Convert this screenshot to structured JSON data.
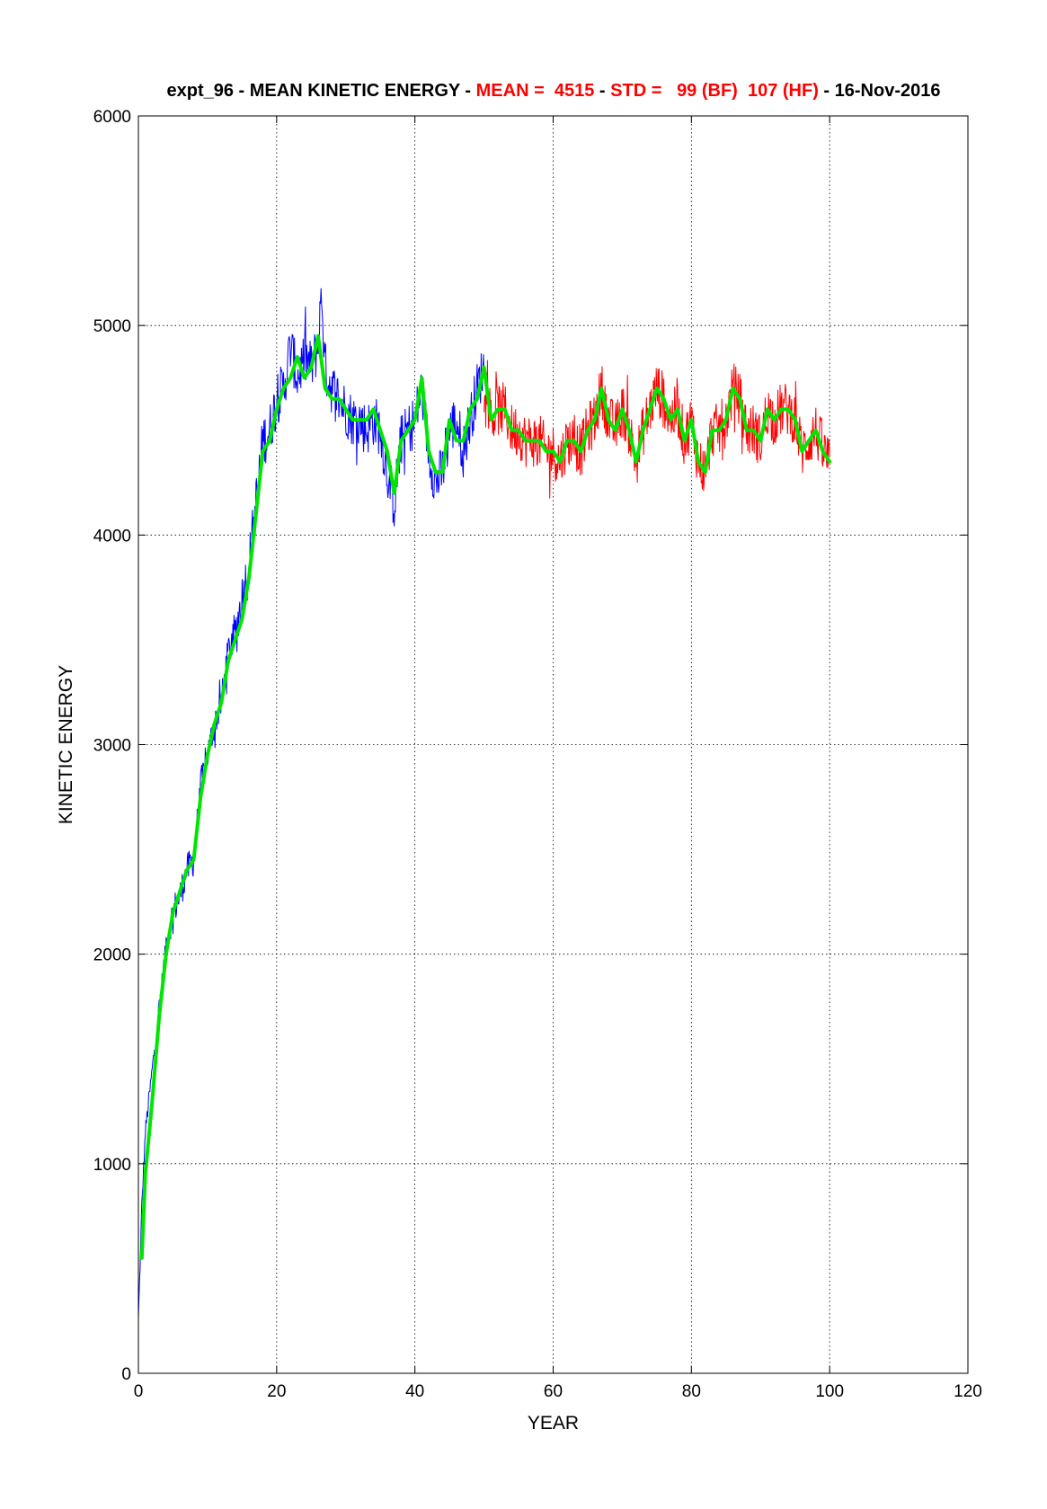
{
  "chart_data": {
    "type": "line",
    "title_parts": [
      {
        "text": "expt_96 - MEAN KINETIC ENERGY - ",
        "color": "#000000"
      },
      {
        "text": "MEAN =  4515",
        "color": "#ff0000"
      },
      {
        "text": " - ",
        "color": "#000000"
      },
      {
        "text": "STD =   99 (BF)  107 (HF)",
        "color": "#ff0000"
      },
      {
        "text": " - 16-Nov-2016",
        "color": "#000000"
      }
    ],
    "xlabel": "YEAR",
    "ylabel": "KINETIC ENERGY",
    "xlim": [
      0,
      120
    ],
    "ylim": [
      0,
      6000
    ],
    "xticks": [
      0,
      20,
      40,
      60,
      80,
      100,
      120
    ],
    "yticks": [
      0,
      1000,
      2000,
      3000,
      4000,
      5000,
      6000
    ],
    "grid": true,
    "series": [
      {
        "color": "#0000ff",
        "style": "thin-noisy",
        "x": [
          0,
          0.5,
          1,
          2,
          3,
          4,
          5,
          6,
          7,
          8,
          9,
          10,
          11,
          12,
          13,
          14,
          15,
          16,
          17,
          18,
          19,
          20,
          21,
          22,
          23,
          24,
          25,
          26,
          26.5,
          27,
          28,
          29,
          30,
          31,
          32,
          33,
          34,
          35,
          36,
          37,
          38,
          39,
          40,
          41,
          42,
          43,
          44,
          45,
          46,
          47,
          48,
          49,
          50
        ],
        "y": [
          250,
          800,
          1150,
          1450,
          1750,
          2050,
          2200,
          2280,
          2400,
          2450,
          2800,
          2950,
          3100,
          3200,
          3450,
          3520,
          3700,
          3850,
          4150,
          4450,
          4500,
          4650,
          4700,
          4900,
          4750,
          4850,
          4800,
          4900,
          5150,
          4800,
          4700,
          4650,
          4600,
          4550,
          4550,
          4500,
          4550,
          4500,
          4300,
          4150,
          4450,
          4500,
          4550,
          4700,
          4400,
          4250,
          4300,
          4500,
          4550,
          4400,
          4550,
          4700,
          4800
        ]
      },
      {
        "color": "#ff0000",
        "style": "thin-noisy",
        "x": [
          50,
          51,
          52,
          53,
          54,
          55,
          56,
          57,
          58,
          59,
          60,
          61,
          62,
          63,
          64,
          65,
          66,
          67,
          68,
          69,
          70,
          71,
          72,
          73,
          74,
          75,
          76,
          77,
          78,
          79,
          80,
          81,
          82,
          83,
          84,
          85,
          86,
          87,
          88,
          89,
          90,
          91,
          92,
          93,
          94,
          95,
          96,
          97,
          98,
          99,
          100
        ],
        "y": [
          4800,
          4550,
          4600,
          4600,
          4500,
          4500,
          4450,
          4450,
          4450,
          4400,
          4400,
          4350,
          4450,
          4450,
          4400,
          4500,
          4550,
          4700,
          4550,
          4500,
          4600,
          4500,
          4350,
          4500,
          4600,
          4700,
          4650,
          4550,
          4600,
          4450,
          4550,
          4350,
          4300,
          4500,
          4500,
          4550,
          4700,
          4650,
          4500,
          4500,
          4450,
          4600,
          4550,
          4600,
          4600,
          4550,
          4400,
          4450,
          4500,
          4400,
          4350
        ]
      },
      {
        "color": "#00e600",
        "style": "thick-smooth",
        "x": [
          0.5,
          1,
          2,
          3,
          4,
          5,
          6,
          7,
          8,
          9,
          10,
          11,
          12,
          13,
          14,
          15,
          16,
          17,
          18,
          19,
          20,
          21,
          22,
          23,
          24,
          25,
          26,
          27,
          28,
          29,
          30,
          31,
          32,
          33,
          34,
          35,
          36,
          37,
          38,
          39,
          40,
          41,
          42,
          43,
          44,
          45,
          46,
          47,
          48,
          49,
          50,
          51,
          52,
          53,
          54,
          55,
          56,
          57,
          58,
          59,
          60,
          61,
          62,
          63,
          64,
          65,
          66,
          67,
          68,
          69,
          70,
          71,
          72,
          73,
          74,
          75,
          76,
          77,
          78,
          79,
          80,
          81,
          82,
          83,
          84,
          85,
          86,
          87,
          88,
          89,
          90,
          91,
          92,
          93,
          94,
          95,
          96,
          97,
          98,
          99,
          100
        ],
        "y": [
          550,
          950,
          1300,
          1700,
          2000,
          2200,
          2300,
          2400,
          2450,
          2750,
          2950,
          3100,
          3200,
          3400,
          3500,
          3600,
          3800,
          4100,
          4400,
          4450,
          4600,
          4700,
          4750,
          4850,
          4750,
          4800,
          4950,
          4700,
          4650,
          4650,
          4600,
          4550,
          4550,
          4550,
          4600,
          4500,
          4400,
          4200,
          4450,
          4500,
          4550,
          4750,
          4400,
          4300,
          4300,
          4550,
          4450,
          4450,
          4600,
          4650,
          4800,
          4550,
          4600,
          4600,
          4500,
          4500,
          4450,
          4450,
          4450,
          4400,
          4400,
          4350,
          4450,
          4450,
          4400,
          4500,
          4550,
          4700,
          4550,
          4500,
          4600,
          4500,
          4350,
          4500,
          4600,
          4700,
          4650,
          4550,
          4600,
          4450,
          4550,
          4350,
          4300,
          4500,
          4500,
          4550,
          4700,
          4650,
          4500,
          4500,
          4450,
          4600,
          4550,
          4600,
          4600,
          4550,
          4400,
          4450,
          4500,
          4400,
          4350
        ]
      }
    ]
  }
}
